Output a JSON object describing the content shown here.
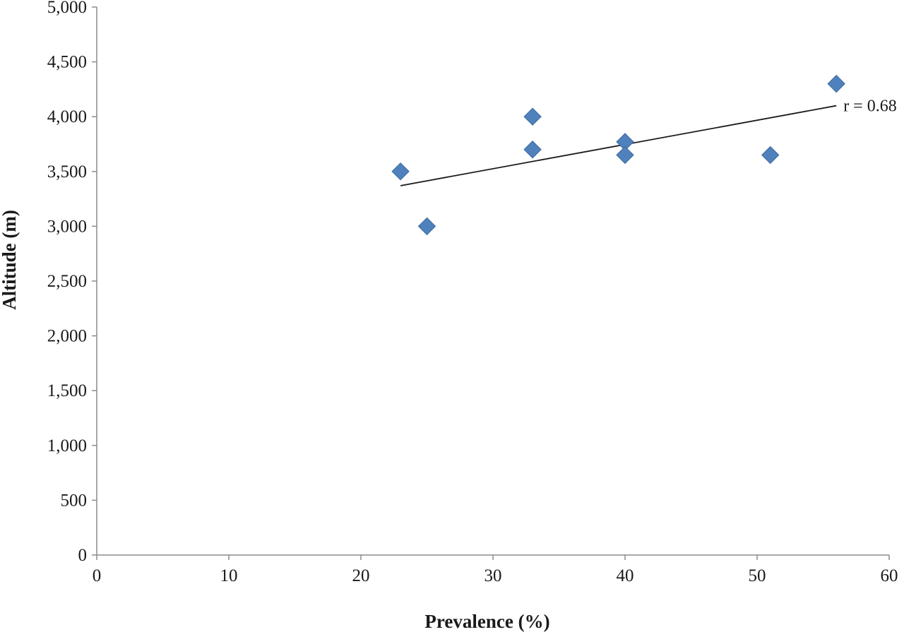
{
  "chart_data": {
    "type": "scatter",
    "title": "",
    "xlabel": "Prevalence (%)",
    "ylabel": "Altitude (m)",
    "xlim": [
      0,
      60
    ],
    "ylim": [
      0,
      5000
    ],
    "xticks": [
      0,
      10,
      20,
      30,
      40,
      50,
      60
    ],
    "yticks": [
      0,
      500,
      1000,
      1500,
      2000,
      2500,
      3000,
      3500,
      4000,
      4500,
      5000
    ],
    "xtick_labels": [
      "0",
      "10",
      "20",
      "30",
      "40",
      "50",
      "60"
    ],
    "ytick_labels": [
      "0",
      "500",
      "1,000",
      "1,500",
      "2,000",
      "2,500",
      "3,000",
      "3,500",
      "4,000",
      "4,500",
      "5,000"
    ],
    "grid": false,
    "series": [
      {
        "points": [
          {
            "x": 23,
            "y": 3500
          },
          {
            "x": 25,
            "y": 3000
          },
          {
            "x": 33,
            "y": 4000
          },
          {
            "x": 33,
            "y": 3700
          },
          {
            "x": 40,
            "y": 3770
          },
          {
            "x": 40,
            "y": 3650
          },
          {
            "x": 51,
            "y": 3650
          },
          {
            "x": 56,
            "y": 4300
          }
        ],
        "marker": "diamond",
        "color": "#4f81bd"
      }
    ],
    "trendline": {
      "type": "linear",
      "from": {
        "x": 23,
        "y": 3370
      },
      "to": {
        "x": 56,
        "y": 4100
      },
      "color": "#1a1a1a",
      "label": "r = 0.68"
    }
  }
}
